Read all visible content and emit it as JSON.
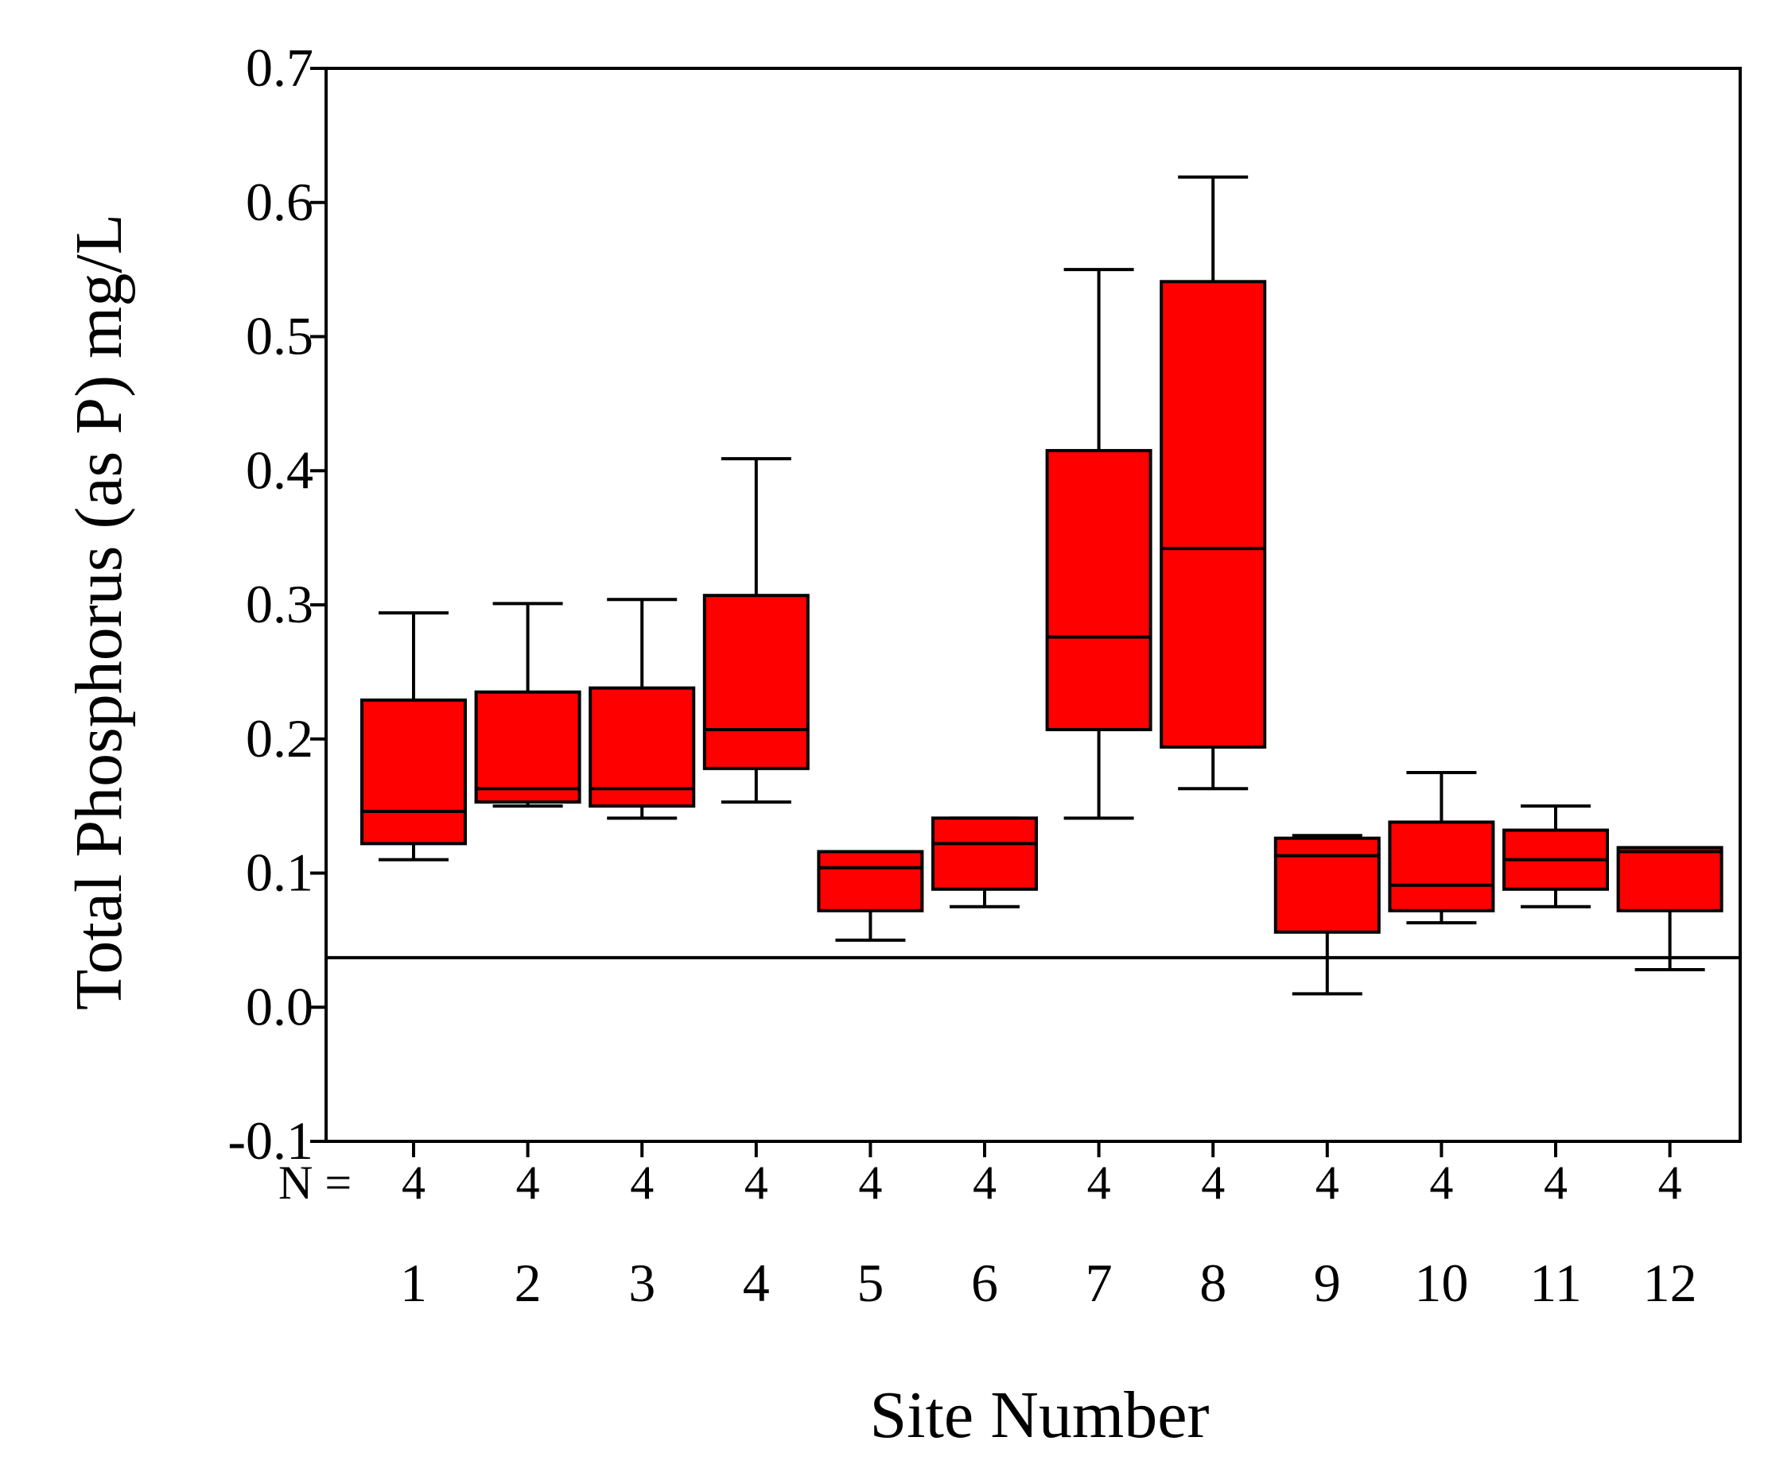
{
  "chart_data": {
    "type": "boxplot",
    "title": "",
    "xlabel": "Site Number",
    "ylabel": "Total Phosphorus (as P) mg/L",
    "ylim": [
      -0.1,
      0.7
    ],
    "yticks": [
      "0.7",
      "0.6",
      "0.5",
      "0.4",
      "0.3",
      "0.2",
      "0.1",
      "0.0",
      "-0.1"
    ],
    "ytick_values": [
      0.7,
      0.6,
      0.5,
      0.4,
      0.3,
      0.2,
      0.1,
      0.0,
      -0.1
    ],
    "n_prefix": "N =",
    "categories": [
      "1",
      "2",
      "3",
      "4",
      "5",
      "6",
      "7",
      "8",
      "9",
      "10",
      "11",
      "12"
    ],
    "n_values": [
      "4",
      "4",
      "4",
      "4",
      "4",
      "4",
      "4",
      "4",
      "4",
      "4",
      "4",
      "4"
    ],
    "boxes": [
      {
        "site": "1",
        "min": 0.11,
        "q1": 0.122,
        "median": 0.146,
        "q3": 0.229,
        "max": 0.294
      },
      {
        "site": "2",
        "min": 0.15,
        "q1": 0.153,
        "median": 0.163,
        "q3": 0.235,
        "max": 0.301
      },
      {
        "site": "3",
        "min": 0.141,
        "q1": 0.15,
        "median": 0.163,
        "q3": 0.238,
        "max": 0.304
      },
      {
        "site": "4",
        "min": 0.153,
        "q1": 0.178,
        "median": 0.207,
        "q3": 0.307,
        "max": 0.409
      },
      {
        "site": "5",
        "min": 0.05,
        "q1": 0.072,
        "median": 0.104,
        "q3": 0.116,
        "max": 0.116
      },
      {
        "site": "6",
        "min": 0.075,
        "q1": 0.088,
        "median": 0.122,
        "q3": 0.141,
        "max": 0.141
      },
      {
        "site": "7",
        "min": 0.141,
        "q1": 0.207,
        "median": 0.276,
        "q3": 0.415,
        "max": 0.55
      },
      {
        "site": "8",
        "min": 0.163,
        "q1": 0.194,
        "median": 0.342,
        "q3": 0.541,
        "max": 0.619
      },
      {
        "site": "9",
        "min": 0.01,
        "q1": 0.056,
        "median": 0.113,
        "q3": 0.126,
        "max": 0.128
      },
      {
        "site": "10",
        "min": 0.063,
        "q1": 0.072,
        "median": 0.091,
        "q3": 0.138,
        "max": 0.175
      },
      {
        "site": "11",
        "min": 0.075,
        "q1": 0.088,
        "median": 0.11,
        "q3": 0.132,
        "max": 0.15
      },
      {
        "site": "12",
        "min": 0.028,
        "q1": 0.072,
        "median": 0.116,
        "q3": 0.119,
        "max": 0.119
      }
    ],
    "reference_line": 0.037,
    "grid": false,
    "legend": "none",
    "colors": {
      "box_fill": "#ff0000",
      "stroke": "#000000",
      "background": "#ffffff"
    }
  }
}
